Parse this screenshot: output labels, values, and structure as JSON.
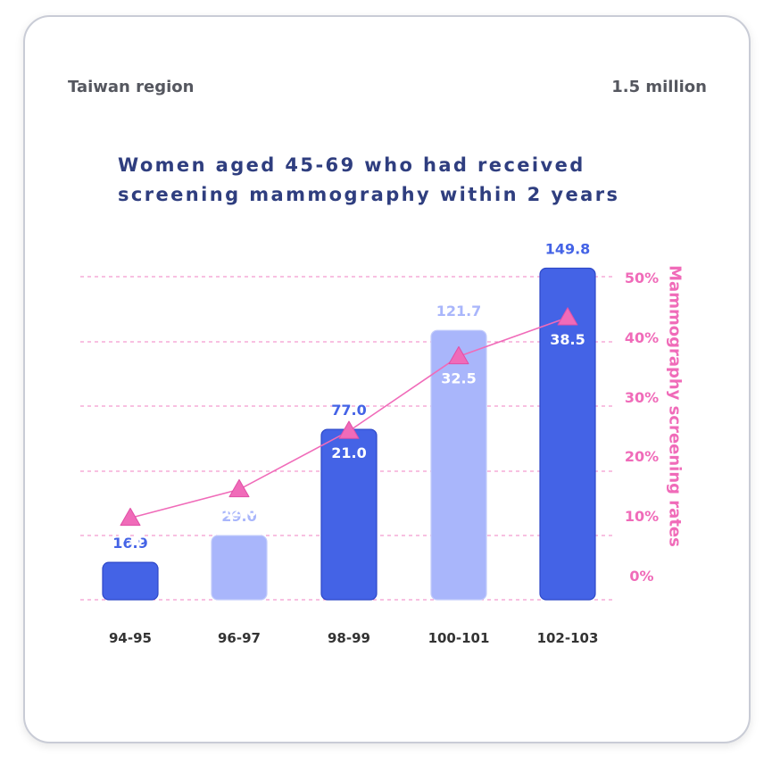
{
  "header": {
    "region_label": "Taiwan region",
    "unit_label": "1.5 million",
    "title": "Women aged 45-69 who had received screening mammography within 2 years"
  },
  "chart_data": {
    "type": "bar",
    "categories": [
      "94-95",
      "96-97",
      "98-99",
      "100-101",
      "102-103"
    ],
    "series": [
      {
        "values": [
          16.9,
          29.0,
          77.0,
          121.7,
          149.8
        ],
        "labels": [
          "16.9",
          "29.0",
          "77.0",
          "121.7",
          "149.8"
        ],
        "bar_colors": [
          "#4463e6",
          "#a9b6fb",
          "#4463e6",
          "#a9b6fb",
          "#4463e6"
        ],
        "label_colors": [
          "#4463e6",
          "#a9b6fb",
          "#4463e6",
          "#a9b6fb",
          "#4463e6"
        ]
      },
      {
        "type": "line",
        "axis": "right",
        "values": [
          7.6,
          12.0,
          21.0,
          32.5,
          38.5
        ],
        "labels": [
          "7.6",
          "12.0",
          "21.0",
          "32.5",
          "38.5"
        ],
        "color": "#f06bb9",
        "marker": "triangle"
      }
    ],
    "right_axis": {
      "label": "Mammography screening rates",
      "ticks": [
        "0%",
        "10%",
        "20%",
        "30%",
        "40%",
        "50%"
      ],
      "tick_values": [
        0,
        10,
        20,
        30,
        40,
        50
      ],
      "range": [
        -5,
        55
      ],
      "color": "#f06bb9"
    },
    "left_axis": {
      "range": [
        0,
        160
      ]
    },
    "grid": true,
    "grid_color": "#f06bb9",
    "grid_style": "dashed",
    "category_label_color": "#333333"
  }
}
